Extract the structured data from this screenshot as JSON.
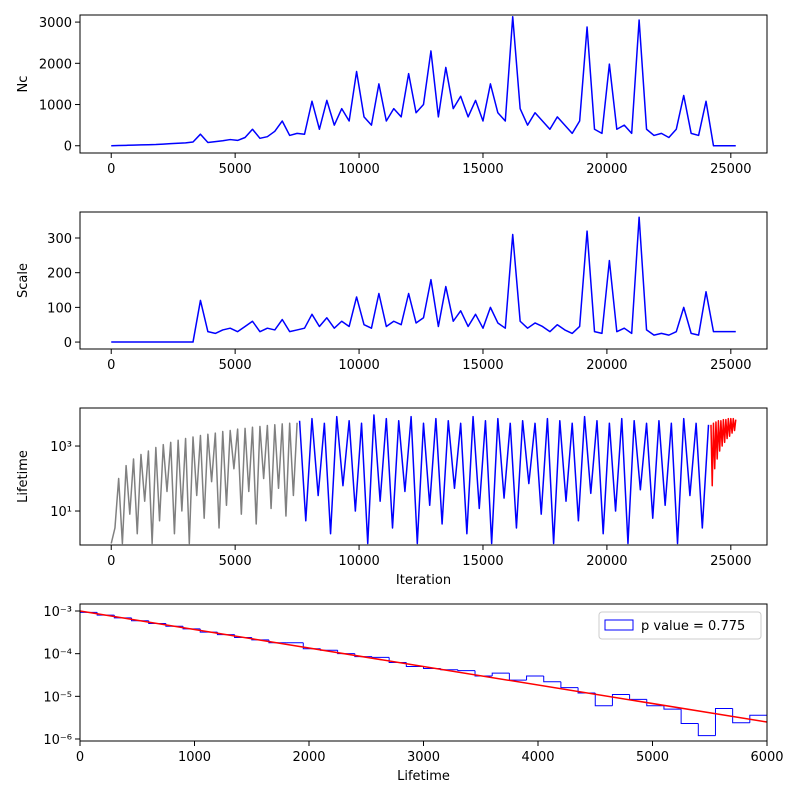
{
  "chart_data": [
    {
      "type": "line",
      "ylabel": "Nc",
      "color": "blue",
      "x": [
        0,
        300,
        600,
        900,
        1200,
        1500,
        1800,
        2100,
        2400,
        2700,
        3000,
        3300,
        3600,
        3900,
        4200,
        4500,
        4800,
        5100,
        5400,
        5700,
        6000,
        6300,
        6600,
        6900,
        7200,
        7500,
        7800,
        8100,
        8400,
        8700,
        9000,
        9300,
        9600,
        9900,
        10200,
        10500,
        10800,
        11100,
        11400,
        11700,
        12000,
        12300,
        12600,
        12900,
        13200,
        13500,
        13800,
        14100,
        14400,
        14700,
        15000,
        15300,
        15600,
        15900,
        16200,
        16500,
        16800,
        17100,
        17400,
        17700,
        18000,
        18300,
        18600,
        18900,
        19200,
        19500,
        19800,
        20100,
        20400,
        20700,
        21000,
        21300,
        21600,
        21900,
        22200,
        22500,
        22800,
        23100,
        23400,
        23700,
        24000,
        24300,
        24600,
        24900,
        25200
      ],
      "values": [
        0,
        5,
        10,
        15,
        20,
        25,
        30,
        40,
        50,
        60,
        70,
        90,
        280,
        80,
        100,
        120,
        150,
        130,
        200,
        400,
        180,
        220,
        350,
        600,
        250,
        300,
        280,
        1080,
        400,
        1100,
        500,
        900,
        600,
        1800,
        700,
        500,
        1500,
        600,
        900,
        700,
        1750,
        800,
        1000,
        2300,
        700,
        1900,
        900,
        1200,
        700,
        1100,
        600,
        1500,
        800,
        600,
        3130,
        900,
        500,
        800,
        600,
        400,
        700,
        500,
        300,
        600,
        2880,
        400,
        300,
        1980,
        400,
        500,
        300,
        3050,
        400,
        250,
        300,
        200,
        400,
        1220,
        300,
        250,
        1080,
        0,
        0,
        0,
        0
      ],
      "xlim": [
        -1260,
        26460
      ],
      "xticks": [
        0,
        5000,
        10000,
        15000,
        20000,
        25000
      ],
      "ylim": [
        -176,
        3172
      ],
      "yticks": [
        0,
        1000,
        2000,
        3000
      ]
    },
    {
      "type": "line",
      "ylabel": "Scale",
      "color": "blue",
      "x": [
        0,
        300,
        600,
        900,
        1200,
        1500,
        1800,
        2100,
        2400,
        2700,
        3000,
        3300,
        3600,
        3900,
        4200,
        4500,
        4800,
        5100,
        5400,
        5700,
        6000,
        6300,
        6600,
        6900,
        7200,
        7500,
        7800,
        8100,
        8400,
        8700,
        9000,
        9300,
        9600,
        9900,
        10200,
        10500,
        10800,
        11100,
        11400,
        11700,
        12000,
        12300,
        12600,
        12900,
        13200,
        13500,
        13800,
        14100,
        14400,
        14700,
        15000,
        15300,
        15600,
        15900,
        16200,
        16500,
        16800,
        17100,
        17400,
        17700,
        18000,
        18300,
        18600,
        18900,
        19200,
        19500,
        19800,
        20100,
        20400,
        20700,
        21000,
        21300,
        21600,
        21900,
        22200,
        22500,
        22800,
        23100,
        23400,
        23700,
        24000,
        24300,
        24600,
        24900,
        25200
      ],
      "values": [
        0,
        0,
        0,
        0,
        0,
        0,
        0,
        0,
        0,
        0,
        0,
        0,
        120,
        30,
        25,
        35,
        40,
        30,
        45,
        60,
        30,
        40,
        35,
        65,
        30,
        35,
        40,
        80,
        45,
        70,
        40,
        60,
        45,
        130,
        50,
        40,
        140,
        45,
        60,
        50,
        140,
        55,
        70,
        180,
        45,
        160,
        60,
        90,
        45,
        80,
        40,
        100,
        55,
        40,
        310,
        60,
        40,
        55,
        45,
        30,
        50,
        35,
        25,
        45,
        320,
        30,
        25,
        235,
        30,
        40,
        25,
        360,
        35,
        20,
        25,
        20,
        30,
        100,
        25,
        20,
        145,
        30,
        30,
        30,
        30
      ],
      "xlim": [
        -1260,
        26460
      ],
      "xticks": [
        0,
        5000,
        10000,
        15000,
        20000,
        25000
      ],
      "ylim": [
        -20,
        375
      ],
      "yticks": [
        0,
        100,
        200,
        300
      ]
    },
    {
      "type": "line",
      "ylabel": "Lifetime",
      "xlabel": "Iteration",
      "yscale": "log",
      "series": [
        {
          "color": "gray",
          "x": [
            0,
            150,
            300,
            450,
            600,
            750,
            900,
            1050,
            1200,
            1350,
            1500,
            1650,
            1800,
            1950,
            2100,
            2250,
            2400,
            2550,
            2700,
            2850,
            3000,
            3150,
            3300,
            3450,
            3600,
            3750,
            3900,
            4050,
            4200,
            4350,
            4500,
            4650,
            4800,
            4950,
            5100,
            5250,
            5400,
            5550,
            5700,
            5850,
            6000,
            6150,
            6300,
            6450,
            6600,
            6750,
            6900,
            7050,
            7200,
            7350,
            7500
          ],
          "values": [
            1,
            3,
            100,
            1,
            250,
            8,
            400,
            2,
            550,
            20,
            700,
            1,
            900,
            5,
            1100,
            40,
            1300,
            2,
            1500,
            10,
            1700,
            1,
            1900,
            30,
            2100,
            6,
            2300,
            80,
            2500,
            3,
            2800,
            15,
            3000,
            200,
            3300,
            8,
            3500,
            40,
            3800,
            4,
            4000,
            100,
            4300,
            12,
            4500,
            50,
            4800,
            7,
            5000,
            30,
            5200
          ]
        },
        {
          "color": "blue",
          "x": [
            7600,
            7850,
            8100,
            8350,
            8600,
            8850,
            9100,
            9350,
            9600,
            9850,
            10100,
            10350,
            10600,
            10850,
            11100,
            11350,
            11600,
            11850,
            12100,
            12350,
            12600,
            12850,
            13100,
            13350,
            13600,
            13850,
            14100,
            14350,
            14600,
            14850,
            15100,
            15350,
            15600,
            15850,
            16100,
            16350,
            16600,
            16850,
            17100,
            17350,
            17600,
            17850,
            18100,
            18350,
            18600,
            18850,
            19100,
            19350,
            19600,
            19850,
            20100,
            20350,
            20600,
            20850,
            21100,
            21350,
            21600,
            21850,
            22100,
            22350,
            22600,
            22850,
            23100,
            23350,
            23600,
            23850,
            24100
          ],
          "values": [
            6000,
            5,
            7000,
            30,
            5000,
            2,
            8000,
            60,
            6000,
            10,
            5000,
            1,
            9000,
            20,
            7000,
            3,
            6000,
            40,
            8000,
            1,
            5000,
            15,
            7000,
            4,
            6000,
            50,
            5000,
            2,
            8000,
            12,
            6000,
            1,
            7000,
            25,
            5000,
            3,
            6000,
            70,
            5000,
            8,
            7000,
            1,
            6000,
            20,
            5000,
            5,
            8000,
            35,
            6000,
            2,
            5000,
            10,
            7000,
            1,
            6000,
            45,
            5000,
            6,
            6000,
            15,
            5000,
            1,
            7000,
            30,
            5000,
            3,
            4500
          ]
        },
        {
          "color": "red",
          "x": [
            24200,
            24250,
            24300,
            24350,
            24400,
            24450,
            24500,
            24550,
            24600,
            24650,
            24700,
            24750,
            24800,
            24850,
            24900,
            24950,
            25000,
            25050,
            25100,
            25150,
            25200
          ],
          "values": [
            4500,
            60,
            5000,
            200,
            5500,
            400,
            6000,
            700,
            6000,
            1000,
            6500,
            1300,
            6500,
            1700,
            7000,
            2000,
            7000,
            2500,
            7000,
            3000,
            6500
          ]
        }
      ],
      "xlim": [
        -1260,
        26460
      ],
      "xticks": [
        0,
        5000,
        10000,
        15000,
        20000,
        25000
      ],
      "ylim": [
        0.9,
        14800
      ],
      "yticks": [
        {
          "value": 10,
          "label": "10¹"
        },
        {
          "value": 1000,
          "label": "10³"
        }
      ]
    },
    {
      "type": "histogram",
      "xlabel": "Lifetime",
      "yscale": "log",
      "color": "blue",
      "name": "p value = 0.775",
      "legend": "upper right",
      "bins": [
        0,
        150,
        300,
        450,
        600,
        750,
        900,
        1050,
        1200,
        1350,
        1500,
        1650,
        1800,
        1950,
        2100,
        2250,
        2400,
        2550,
        2700,
        2850,
        3000,
        3150,
        3300,
        3450,
        3600,
        3750,
        3900,
        4050,
        4200,
        4350,
        4500,
        4650,
        4800,
        4950,
        5100,
        5250,
        5400,
        5550,
        5700,
        5850,
        6000
      ],
      "values": [
        0.00093,
        0.0008,
        0.00069,
        0.00059,
        0.00051,
        0.00044,
        0.00038,
        0.00032,
        0.00028,
        0.00024,
        0.00021,
        0.00018,
        0.00018,
        0.00013,
        0.00012,
        0.0001,
        8.5e-05,
        8.2e-05,
        6.2e-05,
        5e-05,
        4.5e-05,
        4.2e-05,
        4e-05,
        3e-05,
        3.5e-05,
        2.4e-05,
        3e-05,
        2.2e-05,
        1.6e-05,
        1.2e-05,
        6e-06,
        1.1e-05,
        8.5e-06,
        6e-06,
        5e-06,
        2.3e-06,
        1.2e-06,
        5.2e-06,
        2.4e-06,
        3.6e-06,
        1.7e-06
      ],
      "fit": {
        "color": "red",
        "x": [
          0,
          6000
        ],
        "y": [
          0.001,
          2.5e-06
        ]
      },
      "xlim": [
        0,
        6000
      ],
      "xticks": [
        0,
        1000,
        2000,
        3000,
        4000,
        5000,
        6000
      ],
      "ylim": [
        8.97e-07,
        0.00146
      ],
      "yticks": [
        {
          "value": 1e-06,
          "label": "10⁻⁶"
        },
        {
          "value": 1e-05,
          "label": "10⁻⁵"
        },
        {
          "value": 0.0001,
          "label": "10⁻⁴"
        },
        {
          "value": 0.001,
          "label": "10⁻³"
        }
      ]
    }
  ]
}
